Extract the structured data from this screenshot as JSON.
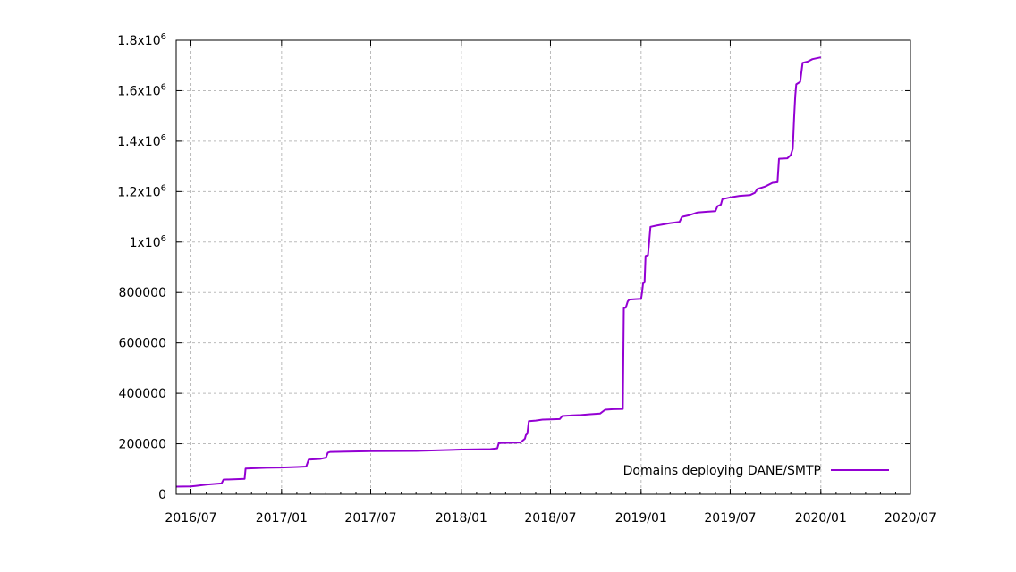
{
  "chart_data": {
    "type": "line",
    "series": [
      {
        "name": "Domains deploying DANE/SMTP",
        "color": "#9400d3",
        "points": [
          [
            "2016-06-01",
            30000
          ],
          [
            "2016-07-01",
            31000
          ],
          [
            "2016-07-10",
            33000
          ],
          [
            "2016-08-01",
            38000
          ],
          [
            "2016-08-20",
            41000
          ],
          [
            "2016-09-01",
            43000
          ],
          [
            "2016-09-05",
            58000
          ],
          [
            "2016-10-01",
            60000
          ],
          [
            "2016-10-18",
            61000
          ],
          [
            "2016-10-20",
            102000
          ],
          [
            "2016-12-01",
            105000
          ],
          [
            "2017-01-01",
            106000
          ],
          [
            "2017-02-01",
            108000
          ],
          [
            "2017-02-20",
            110000
          ],
          [
            "2017-02-25",
            137000
          ],
          [
            "2017-03-20",
            140000
          ],
          [
            "2017-04-01",
            145000
          ],
          [
            "2017-04-05",
            165000
          ],
          [
            "2017-04-10",
            168000
          ],
          [
            "2017-07-01",
            171000
          ],
          [
            "2017-10-01",
            172000
          ],
          [
            "2018-01-01",
            177000
          ],
          [
            "2018-03-01",
            179000
          ],
          [
            "2018-03-15",
            182000
          ],
          [
            "2018-03-18",
            203000
          ],
          [
            "2018-05-01",
            205000
          ],
          [
            "2018-05-10",
            220000
          ],
          [
            "2018-05-12",
            235000
          ],
          [
            "2018-05-15",
            240000
          ],
          [
            "2018-05-18",
            290000
          ],
          [
            "2018-06-01",
            292000
          ],
          [
            "2018-06-15",
            296000
          ],
          [
            "2018-07-01",
            297000
          ],
          [
            "2018-07-20",
            298000
          ],
          [
            "2018-07-25",
            310000
          ],
          [
            "2018-08-15",
            313000
          ],
          [
            "2018-09-01",
            314000
          ],
          [
            "2018-09-20",
            317000
          ],
          [
            "2018-10-10",
            320000
          ],
          [
            "2018-10-20",
            335000
          ],
          [
            "2018-11-05",
            337000
          ],
          [
            "2018-11-25",
            338000
          ],
          [
            "2018-11-27",
            738000
          ],
          [
            "2018-12-01",
            740000
          ],
          [
            "2018-12-05",
            765000
          ],
          [
            "2018-12-08",
            772000
          ],
          [
            "2018-12-20",
            774000
          ],
          [
            "2019-01-01",
            775000
          ],
          [
            "2019-01-03",
            800000
          ],
          [
            "2019-01-05",
            836000
          ],
          [
            "2019-01-08",
            840000
          ],
          [
            "2019-01-10",
            945000
          ],
          [
            "2019-01-15",
            948000
          ],
          [
            "2019-01-20",
            1060000
          ],
          [
            "2019-02-01",
            1065000
          ],
          [
            "2019-02-15",
            1070000
          ],
          [
            "2019-03-01",
            1075000
          ],
          [
            "2019-03-20",
            1080000
          ],
          [
            "2019-03-25",
            1100000
          ],
          [
            "2019-04-10",
            1107000
          ],
          [
            "2019-04-25",
            1117000
          ],
          [
            "2019-05-15",
            1120000
          ],
          [
            "2019-06-01",
            1122000
          ],
          [
            "2019-06-05",
            1142000
          ],
          [
            "2019-06-12",
            1148000
          ],
          [
            "2019-06-15",
            1170000
          ],
          [
            "2019-07-01",
            1177000
          ],
          [
            "2019-07-20",
            1183000
          ],
          [
            "2019-08-10",
            1186000
          ],
          [
            "2019-08-20",
            1195000
          ],
          [
            "2019-08-25",
            1210000
          ],
          [
            "2019-09-10",
            1220000
          ],
          [
            "2019-09-25",
            1235000
          ],
          [
            "2019-10-05",
            1237000
          ],
          [
            "2019-10-08",
            1330000
          ],
          [
            "2019-10-25",
            1332000
          ],
          [
            "2019-11-01",
            1345000
          ],
          [
            "2019-11-05",
            1370000
          ],
          [
            "2019-11-08",
            1500000
          ],
          [
            "2019-11-10",
            1580000
          ],
          [
            "2019-11-12",
            1625000
          ],
          [
            "2019-11-20",
            1635000
          ],
          [
            "2019-11-25",
            1710000
          ],
          [
            "2019-12-05",
            1715000
          ],
          [
            "2019-12-15",
            1725000
          ],
          [
            "2020-01-01",
            1732000
          ]
        ]
      }
    ],
    "x_range": [
      "2016-06-01",
      "2020-07-01"
    ],
    "y_range": [
      0,
      1800000
    ],
    "x_ticks": [
      {
        "date": "2016-07-01",
        "label": "2016/07"
      },
      {
        "date": "2017-01-01",
        "label": "2017/01"
      },
      {
        "date": "2017-07-01",
        "label": "2017/07"
      },
      {
        "date": "2018-01-01",
        "label": "2018/01"
      },
      {
        "date": "2018-07-01",
        "label": "2018/07"
      },
      {
        "date": "2019-01-01",
        "label": "2019/01"
      },
      {
        "date": "2019-07-01",
        "label": "2019/07"
      },
      {
        "date": "2020-01-01",
        "label": "2020/01"
      },
      {
        "date": "2020-07-01",
        "label": "2020/07"
      }
    ],
    "y_ticks": [
      {
        "value": 0,
        "label": "0"
      },
      {
        "value": 200000,
        "label": "200000"
      },
      {
        "value": 400000,
        "label": "400000"
      },
      {
        "value": 600000,
        "label": "600000"
      },
      {
        "value": 800000,
        "label": "800000"
      },
      {
        "value": 1000000,
        "label": "1x10",
        "sup": "6"
      },
      {
        "value": 1200000,
        "label": "1.2x10",
        "sup": "6"
      },
      {
        "value": 1400000,
        "label": "1.4x10",
        "sup": "6"
      },
      {
        "value": 1600000,
        "label": "1.6x10",
        "sup": "6"
      },
      {
        "value": 1800000,
        "label": "1.8x10",
        "sup": "6"
      }
    ],
    "grid": true,
    "legend_position": "bottom-right"
  }
}
